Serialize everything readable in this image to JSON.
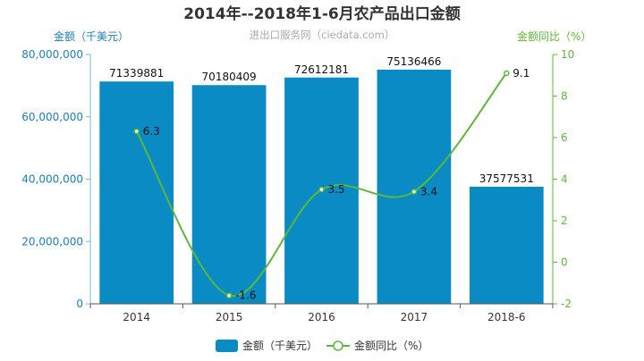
{
  "chart_data": {
    "type": "bar",
    "title": "2014年--2018年1-6月农产品出口金额",
    "subtitle": "进出口服务网（ciedata.com）",
    "y_left_label": "金额（千美元）",
    "y_right_label": "金额同比（%）",
    "categories": [
      "2014",
      "2015",
      "2016",
      "2017",
      "2018-6"
    ],
    "y_left_lim": [
      0,
      80000000
    ],
    "y_left_ticks": [
      0,
      20000000,
      40000000,
      60000000,
      80000000
    ],
    "y_left_tick_labels": [
      "0",
      "20,000,000",
      "40,000,000",
      "60,000,000",
      "80,000,000"
    ],
    "y_right_lim": [
      -2,
      10
    ],
    "y_right_ticks": [
      -2,
      0,
      2,
      4,
      6,
      8,
      10
    ],
    "y_right_tick_labels": [
      "-2",
      "0",
      "2",
      "4",
      "6",
      "8",
      "10"
    ],
    "series": [
      {
        "name": "金额（千美元）",
        "type": "bar",
        "axis": "left",
        "values": [
          71339881,
          70180409,
          72612181,
          75136466,
          37577531
        ],
        "labels": [
          "71339881",
          "70180409",
          "72612181",
          "75136466",
          "37577531"
        ]
      },
      {
        "name": "金额同比（%）",
        "type": "line",
        "axis": "right",
        "smooth": true,
        "values": [
          6.3,
          -1.6,
          3.5,
          3.4,
          9.1
        ],
        "labels": [
          "6.3",
          "-1.6",
          "3.5",
          "3.4",
          "9.1"
        ]
      }
    ],
    "legend_position": "bottom",
    "grid": false,
    "colors": {
      "bar": "#0a8bc4",
      "line": "#5cb83a",
      "left_axis_text": "#1b7fb5",
      "right_axis_text": "#5cb83a",
      "title": "#333333",
      "subtitle": "#aaaaaa"
    }
  }
}
